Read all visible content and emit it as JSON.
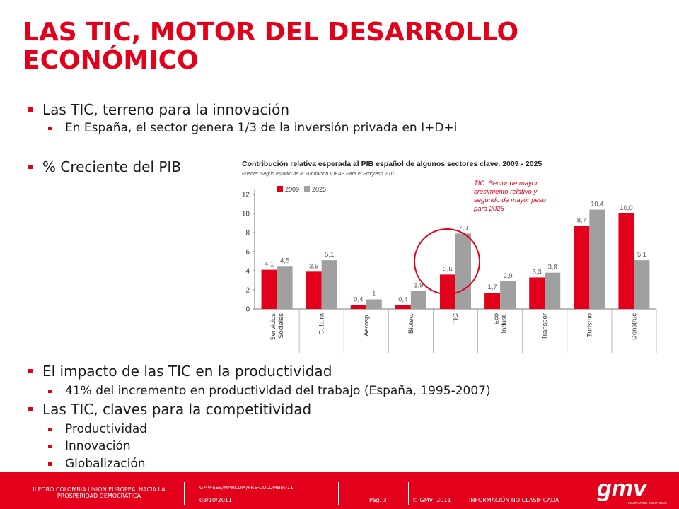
{
  "slide": {
    "title_line1": "LAS TIC, MOTOR DEL DESARROLLO",
    "title_line2": "ECONÓMICO"
  },
  "bullets": [
    {
      "text": "Las TIC, terreno para la innovación"
    },
    {
      "text": "En España, el sector genera 1/3 de la inversión privada en I+D+i"
    },
    {
      "text": "% Creciente del PIB"
    },
    {
      "text": "El impacto de las TIC en la productividad"
    },
    {
      "text": "41% del incremento en productividad del trabajo (España, 1995-2007)"
    },
    {
      "text": "Las TIC, claves para la competitividad"
    },
    {
      "text": "Productividad"
    },
    {
      "text": "Innovación"
    },
    {
      "text": "Globalización"
    }
  ],
  "chart_data": {
    "type": "bar",
    "title": "Contribución relativa esperada al PIB español de algunos sectores clave. 2009 - 2025",
    "subtitle": "Fuente: Según estudio de la Fundación IDEAS Para el Progreso 2010",
    "categories": [
      "Servicios Sociales",
      "Cultura",
      "Aerosp.",
      "Biotec.",
      "TIC",
      "Eco Indust.",
      "Transpor",
      "Turismo",
      "Construc"
    ],
    "series": [
      {
        "name": "2009",
        "values": [
          4.1,
          3.9,
          0.4,
          0.4,
          3.6,
          1.7,
          3.3,
          8.7,
          10.0
        ],
        "labels": [
          "4,1",
          "3,9",
          "0,4",
          "0,4",
          "3,6",
          "1,7",
          "3,3",
          "8,7",
          "10,0"
        ],
        "color": "#e2001a"
      },
      {
        "name": "2025",
        "values": [
          4.5,
          5.1,
          1,
          1.9,
          7.9,
          2.9,
          3.8,
          10.4,
          5.1
        ],
        "labels": [
          "4,5",
          "5,1",
          "1",
          "1,9",
          "7,9",
          "2,9",
          "3,8",
          "10,4",
          "5,1"
        ],
        "color": "#a0a0a0"
      }
    ],
    "ylim": [
      0,
      12
    ],
    "yticks": [
      0,
      2,
      4,
      6,
      8,
      10,
      12
    ],
    "annotation": "TIC. Sector de mayor crecimiento relativo y segundo de mayor peso para 2025",
    "legend_position": "top-left",
    "grid": false
  },
  "footer": {
    "event": "II FORO COLOMBIA UNIÓN EUROPEA. HACIA LA PROSPERIDAD  DEMOCRÁTICA",
    "doc_ref": "GMV-SES/MARCOM/PRE-COLOMBIA-11",
    "date": "03/10/2011",
    "page": "Pag. 3",
    "copyright": "© GMV, 2011",
    "classification": "INFORMACIÓN  NO CLASIFICADA",
    "logo_text": "gmv",
    "logo_tagline": "INNOVATING SOLUTIONS"
  },
  "colors": {
    "brand_red": "#e2001a",
    "bar_gray": "#a0a0a0"
  }
}
